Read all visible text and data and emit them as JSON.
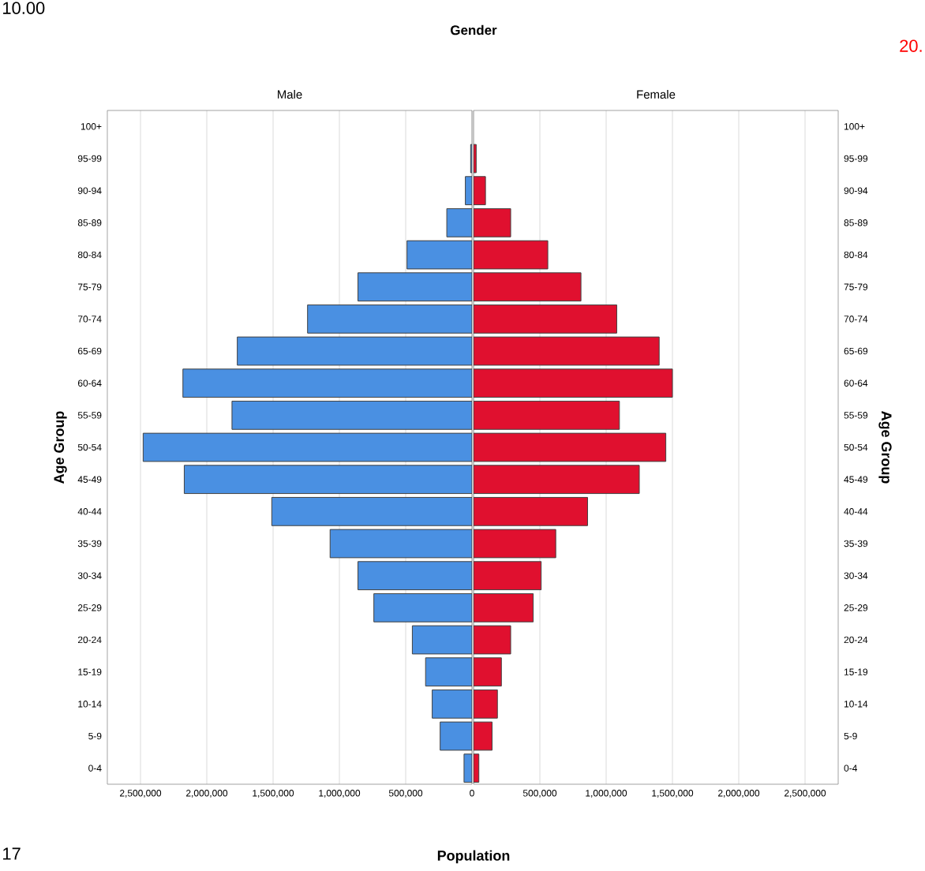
{
  "chart_data": [
    {
      "type": "bar",
      "orientation": "horizontal",
      "title": "Gender",
      "subtitle": "Male",
      "xlabel": "Population",
      "ylabel": "Age Group",
      "categories": [
        "100+",
        "95-99",
        "90-94",
        "85-89",
        "80-84",
        "75-79",
        "70-74",
        "65-69",
        "60-64",
        "55-59",
        "50-54",
        "45-49",
        "40-44",
        "35-39",
        "30-34",
        "25-29",
        "20-24",
        "15-19",
        "10-14",
        "5-9",
        "0-4"
      ],
      "values": [
        null,
        10000,
        50000,
        190000,
        490000,
        860000,
        1240000,
        1770000,
        2180000,
        1810000,
        2480000,
        2170000,
        1510000,
        1070000,
        860000,
        740000,
        450000,
        350000,
        300000,
        240000,
        60000
      ],
      "color": "#4a90e2",
      "xlim": [
        2750000,
        0
      ],
      "xticks": [
        {
          "value": 2500000,
          "label": "2,500,000"
        },
        {
          "value": 2000000,
          "label": "2,000,000"
        },
        {
          "value": 1500000,
          "label": "1,500,000"
        },
        {
          "value": 1000000,
          "label": "1,000,000"
        },
        {
          "value": 500000,
          "label": "500,000"
        },
        0
      ],
      "grid": "x",
      "annotations": [
        "10.00",
        "17"
      ]
    },
    {
      "type": "bar",
      "orientation": "horizontal",
      "subtitle": "Female",
      "ylabel": "Age Group",
      "categories": [
        "100+",
        "95-99",
        "90-94",
        "85-89",
        "80-84",
        "75-79",
        "70-74",
        "65-69",
        "60-64",
        "55-59",
        "50-54",
        "45-49",
        "40-44",
        "35-39",
        "30-34",
        "25-29",
        "20-24",
        "15-19",
        "10-14",
        "5-9",
        "0-4"
      ],
      "values": [
        null,
        20000,
        90000,
        280000,
        560000,
        810000,
        1080000,
        1400000,
        1500000,
        1100000,
        1450000,
        1250000,
        860000,
        620000,
        510000,
        450000,
        280000,
        210000,
        180000,
        140000,
        40000
      ],
      "color": "#e0102f",
      "xlim": [
        0,
        2750000
      ],
      "xticks": [
        {
          "value": 0,
          "label": null
        },
        {
          "value": 500000,
          "label": "500,000"
        },
        {
          "value": 1000000,
          "label": "1,000,000"
        },
        {
          "value": 1500000,
          "label": "1,500,000"
        },
        {
          "value": 2000000,
          "label": "2,000,000"
        },
        {
          "value": 2500000,
          "label": "2,500,000"
        }
      ],
      "grid": "x",
      "annotations": [
        "20."
      ]
    }
  ]
}
